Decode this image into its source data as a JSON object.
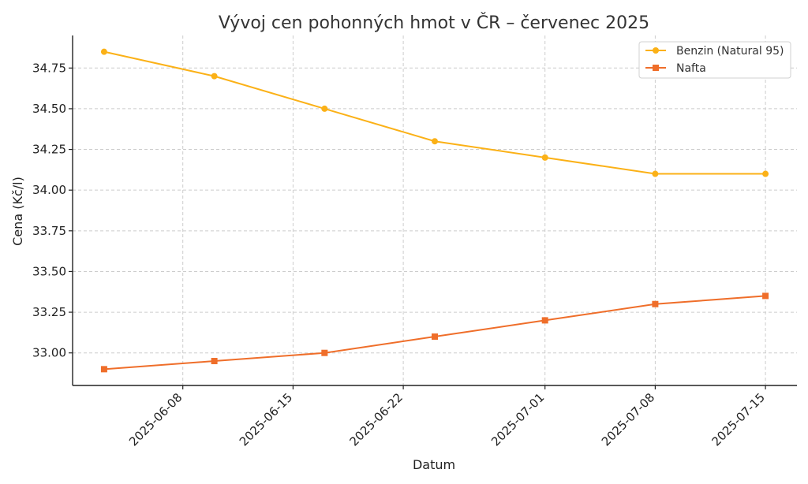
{
  "chart_data": {
    "type": "line",
    "title": "Vývoj cen pohonných hmot v ČR – červenec 2025",
    "xlabel": "Datum",
    "ylabel": "Cena (Kč/l)",
    "x": [
      "2025-06-03",
      "2025-06-10",
      "2025-06-17",
      "2025-06-24",
      "2025-07-01",
      "2025-07-08",
      "2025-07-15"
    ],
    "x_ticks": [
      "2025-06-08",
      "2025-06-15",
      "2025-06-22",
      "2025-07-01",
      "2025-07-08",
      "2025-07-15"
    ],
    "y_ticks": [
      "33.00",
      "33.25",
      "33.50",
      "33.75",
      "34.00",
      "34.25",
      "34.50",
      "34.75"
    ],
    "ylim": [
      32.8,
      34.95
    ],
    "xlim": [
      "2025-06-01",
      "2025-07-17"
    ],
    "grid": true,
    "legend_position": "top-right",
    "series": [
      {
        "name": "Benzin (Natural 95)",
        "values": [
          34.85,
          34.7,
          34.5,
          34.3,
          34.2,
          34.1,
          34.1
        ],
        "color": "#FBB117",
        "marker": "circle"
      },
      {
        "name": "Nafta",
        "values": [
          32.9,
          32.95,
          33.0,
          33.1,
          33.2,
          33.3,
          33.35
        ],
        "color": "#EF6E2A",
        "marker": "square"
      }
    ]
  }
}
